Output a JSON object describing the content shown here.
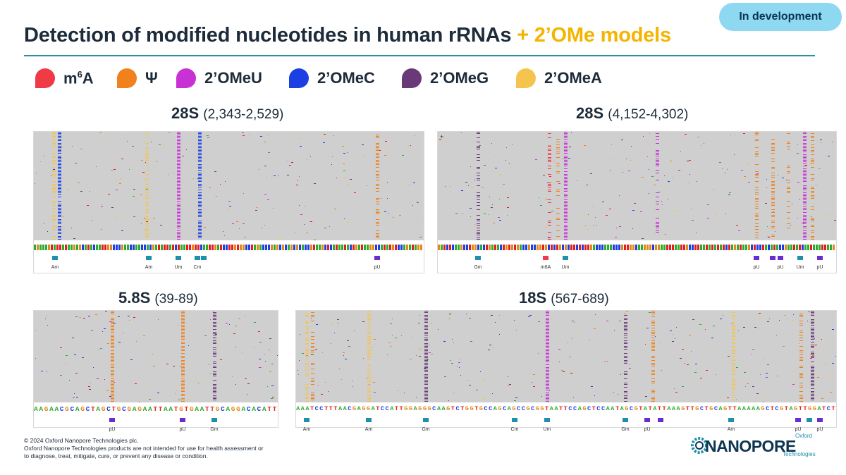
{
  "badge": "In development",
  "title": {
    "main": "Detection of modified nucleotides in human rRNAs",
    "accent": "+ 2’OMe models"
  },
  "colors": {
    "m6A": "#f03a45",
    "psi": "#f0811c",
    "OMeU": "#c831d6",
    "OMeC": "#1b3fe2",
    "OMeG": "#6a3a78",
    "OMeA": "#f4c44e",
    "title_accent": "#f4b400",
    "rule": "#2a8fa6",
    "badge_bg": "#8ed8f2",
    "annot": "#1f8fb0",
    "pseudo": "#6a2bd0"
  },
  "legend": [
    {
      "id": "m6A",
      "prefix": "m",
      "sup": "6",
      "suffix": "A",
      "color": "#f03a45"
    },
    {
      "id": "psi",
      "prefix": "Ψ",
      "sup": "",
      "suffix": "",
      "color": "#f0811c"
    },
    {
      "id": "OMeU",
      "prefix": "2’OMeU",
      "sup": "",
      "suffix": "",
      "color": "#c831d6"
    },
    {
      "id": "OMeC",
      "prefix": "2’OMeC",
      "sup": "",
      "suffix": "",
      "color": "#1b3fe2"
    },
    {
      "id": "OMeG",
      "prefix": "2’OMeG",
      "sup": "",
      "suffix": "",
      "color": "#6a3a78"
    },
    {
      "id": "OMeA",
      "prefix": "2’OMeA",
      "sup": "",
      "suffix": "",
      "color": "#f4c44e"
    }
  ],
  "panels": {
    "p28s_a": {
      "name": "28S",
      "range": "(2,343-2,529)",
      "tracks": [
        {
          "pos": 0.05,
          "c": "#f4c44e",
          "d": 0.55
        },
        {
          "pos": 0.065,
          "c": "#1b3fe2",
          "d": 0.9
        },
        {
          "pos": 0.29,
          "c": "#f4c44e",
          "d": 0.6
        },
        {
          "pos": 0.37,
          "c": "#c831d6",
          "d": 0.95
        },
        {
          "pos": 0.425,
          "c": "#1b3fe2",
          "d": 0.9
        },
        {
          "pos": 0.88,
          "c": "#f0811c",
          "d": 0.6
        }
      ],
      "annots": [
        {
          "pos": 0.055,
          "label": "Am",
          "kind": "OMe"
        },
        {
          "pos": 0.295,
          "label": "Am",
          "kind": "OMe"
        },
        {
          "pos": 0.37,
          "label": "Um",
          "kind": "OMe"
        },
        {
          "pos": 0.42,
          "label": "Cm",
          "kind": "OMe"
        },
        {
          "pos": 0.435,
          "label": "",
          "kind": "OMe"
        },
        {
          "pos": 0.88,
          "label": "pU",
          "kind": "pseudo"
        }
      ]
    },
    "p28s_b": {
      "name": "28S",
      "range": "(4,152-4,302)",
      "tracks": [
        {
          "pos": 0.1,
          "c": "#6a3a78",
          "d": 0.5
        },
        {
          "pos": 0.28,
          "c": "#f03a45",
          "d": 0.4
        },
        {
          "pos": 0.3,
          "c": "#f0811c",
          "d": 0.3
        },
        {
          "pos": 0.32,
          "c": "#c831d6",
          "d": 0.95
        },
        {
          "pos": 0.55,
          "c": "#c831d6",
          "d": 0.4
        },
        {
          "pos": 0.8,
          "c": "#f0811c",
          "d": 0.5
        },
        {
          "pos": 0.84,
          "c": "#f0811c",
          "d": 0.5
        },
        {
          "pos": 0.88,
          "c": "#f0811c",
          "d": 0.3
        },
        {
          "pos": 0.92,
          "c": "#c831d6",
          "d": 0.7
        },
        {
          "pos": 0.94,
          "c": "#f0811c",
          "d": 0.5
        }
      ],
      "annots": [
        {
          "pos": 0.1,
          "label": "Gm",
          "kind": "OMe"
        },
        {
          "pos": 0.27,
          "label": "m6A",
          "kind": "m6A"
        },
        {
          "pos": 0.32,
          "label": "Um",
          "kind": "OMe"
        },
        {
          "pos": 0.8,
          "label": "pU",
          "kind": "pseudo"
        },
        {
          "pos": 0.84,
          "label": "",
          "kind": "pseudo"
        },
        {
          "pos": 0.86,
          "label": "pU",
          "kind": "pseudo"
        },
        {
          "pos": 0.91,
          "label": "Um",
          "kind": "OMe"
        },
        {
          "pos": 0.96,
          "label": "pU",
          "kind": "pseudo"
        }
      ]
    },
    "p58s": {
      "name": "5.8S",
      "range": "(39-89)",
      "sequence": "AAGAACGCAGCTAGCTGCGAGAATTAATGTGAATTGCAGGACACATT",
      "tracks": [
        {
          "pos": 0.32,
          "c": "#f0811c",
          "d": 0.9
        },
        {
          "pos": 0.61,
          "c": "#f0811c",
          "d": 0.9
        },
        {
          "pos": 0.74,
          "c": "#6a3a78",
          "d": 0.6
        }
      ],
      "annots": [
        {
          "pos": 0.32,
          "label": "pU",
          "kind": "pseudo"
        },
        {
          "pos": 0.61,
          "label": "pU",
          "kind": "pseudo"
        },
        {
          "pos": 0.74,
          "label": "Gm",
          "kind": "OMe"
        }
      ]
    },
    "p18s": {
      "name": "18S",
      "range": "(567-689)",
      "sequence": "AAATCCTTTAACGAGGATCCATTGGAGGGCAAGTCTGGTGCCAGCAGCCGCGGTAATTCCAGCTCCAATAGCGTATATTAAAGTTGCTGCAGTTAAAAAGCTCGTAGTTGGATCT",
      "tracks": [
        {
          "pos": 0.02,
          "c": "#f4c44e",
          "d": 0.7
        },
        {
          "pos": 0.03,
          "c": "#f0811c",
          "d": 0.4
        },
        {
          "pos": 0.135,
          "c": "#f4c44e",
          "d": 0.7
        },
        {
          "pos": 0.24,
          "c": "#6a3a78",
          "d": 0.9
        },
        {
          "pos": 0.465,
          "c": "#c831d6",
          "d": 0.95
        },
        {
          "pos": 0.61,
          "c": "#6a3a78",
          "d": 0.6
        },
        {
          "pos": 0.66,
          "c": "#f0811c",
          "d": 0.7
        },
        {
          "pos": 0.81,
          "c": "#f4c44e",
          "d": 0.7
        },
        {
          "pos": 0.935,
          "c": "#f0811c",
          "d": 0.5
        },
        {
          "pos": 0.955,
          "c": "#6a3a78",
          "d": 0.8
        }
      ],
      "annots": [
        {
          "pos": 0.02,
          "label": "Am",
          "kind": "OMe"
        },
        {
          "pos": 0.135,
          "label": "Am",
          "kind": "OMe"
        },
        {
          "pos": 0.24,
          "label": "Gm",
          "kind": "OMe"
        },
        {
          "pos": 0.405,
          "label": "Cm",
          "kind": "OMe"
        },
        {
          "pos": 0.465,
          "label": "Um",
          "kind": "OMe"
        },
        {
          "pos": 0.61,
          "label": "Gm",
          "kind": "OMe"
        },
        {
          "pos": 0.65,
          "label": "pU",
          "kind": "pseudo"
        },
        {
          "pos": 0.675,
          "label": "",
          "kind": "pseudo"
        },
        {
          "pos": 0.805,
          "label": "Am",
          "kind": "OMe"
        },
        {
          "pos": 0.93,
          "label": "pU",
          "kind": "pseudo"
        },
        {
          "pos": 0.95,
          "label": "",
          "kind": "OMe"
        },
        {
          "pos": 0.97,
          "label": "pU",
          "kind": "pseudo"
        }
      ]
    }
  },
  "footer": {
    "copyright": "© 2024 Oxford Nanopore Technologies plc.",
    "line1": "Oxford Nanopore Technologies products are not intended for use for health assessment or",
    "line2": "to diagnose, treat, mitigate, cure, or prevent any disease or condition."
  },
  "logo": {
    "oxford": "Oxford",
    "word": "NANOPORE",
    "tech": "Technologies"
  },
  "panel_plus": "+"
}
